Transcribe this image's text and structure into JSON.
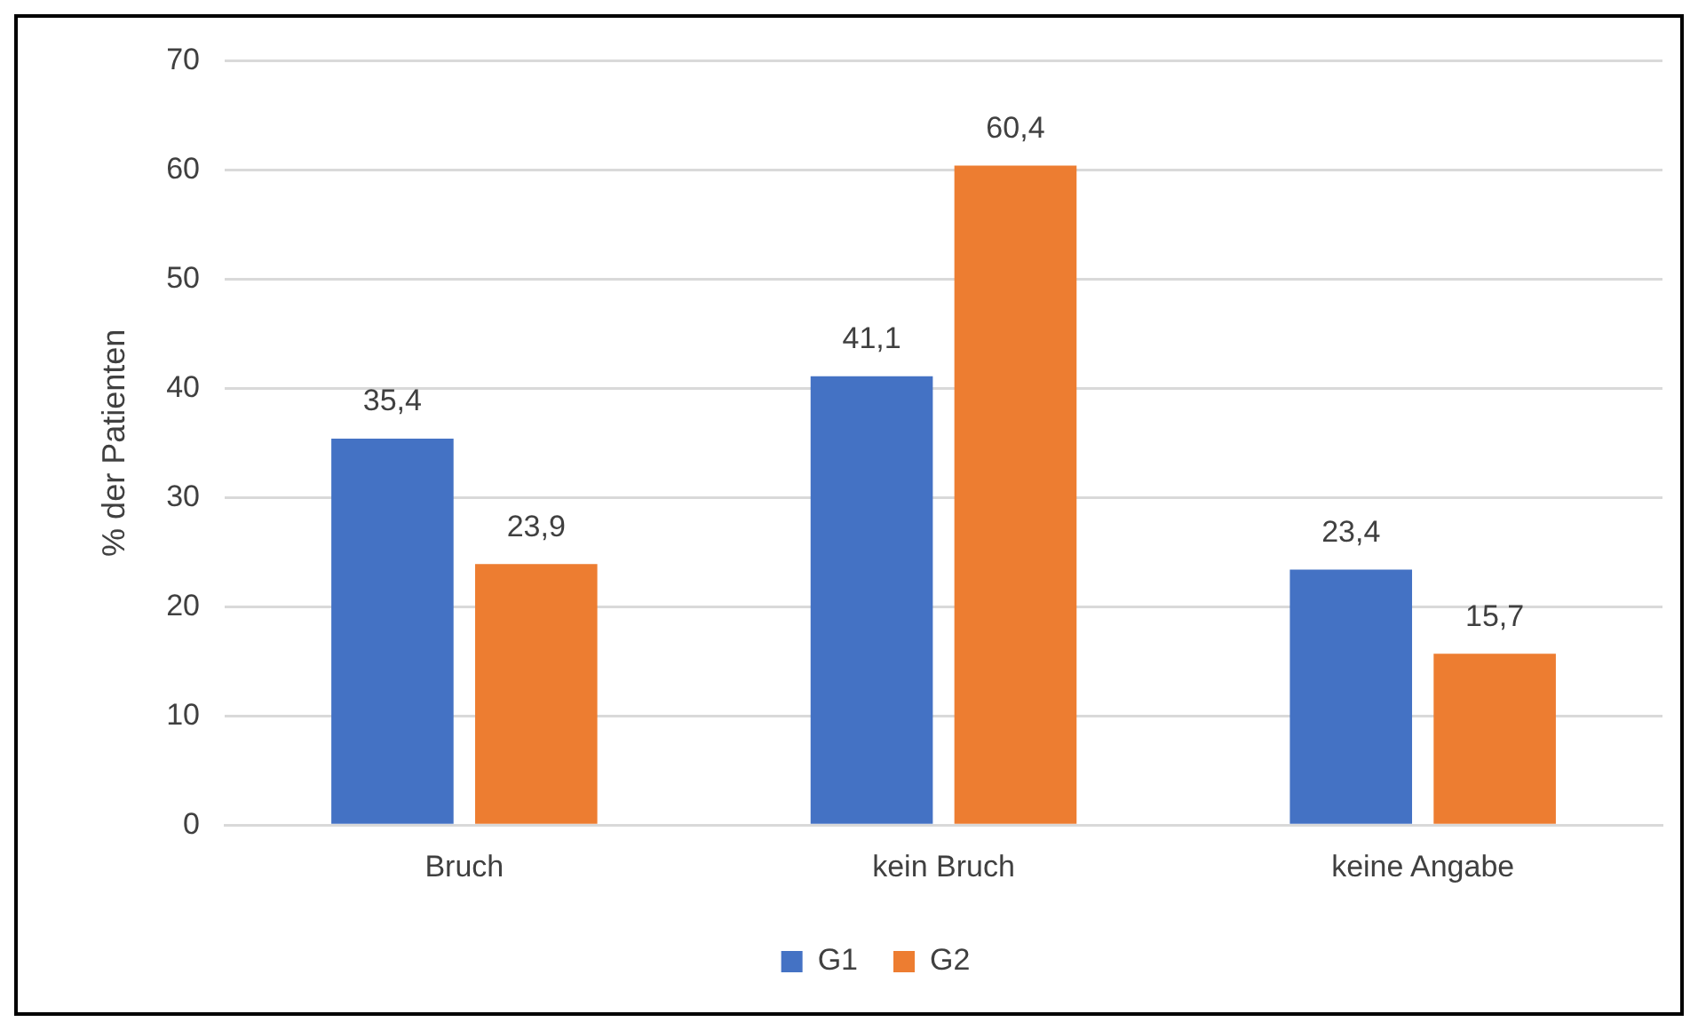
{
  "chart_data": {
    "type": "bar",
    "ylabel": "% der Patienten",
    "categories": [
      "Bruch",
      "kein Bruch",
      "keine Angabe"
    ],
    "series": [
      {
        "name": "G1",
        "color": "#4472c4",
        "values": [
          35.4,
          41.1,
          23.4
        ],
        "value_labels": [
          "35,4",
          "41,1",
          "23,4"
        ]
      },
      {
        "name": "G2",
        "color": "#ed7d31",
        "values": [
          23.9,
          60.4,
          15.7
        ],
        "value_labels": [
          "23,9",
          "60,4",
          "15,7"
        ]
      }
    ],
    "ylim": [
      0,
      70
    ],
    "yticks": [
      0,
      10,
      20,
      30,
      40,
      50,
      60,
      70
    ],
    "grid": "y",
    "legend": "bottom"
  }
}
